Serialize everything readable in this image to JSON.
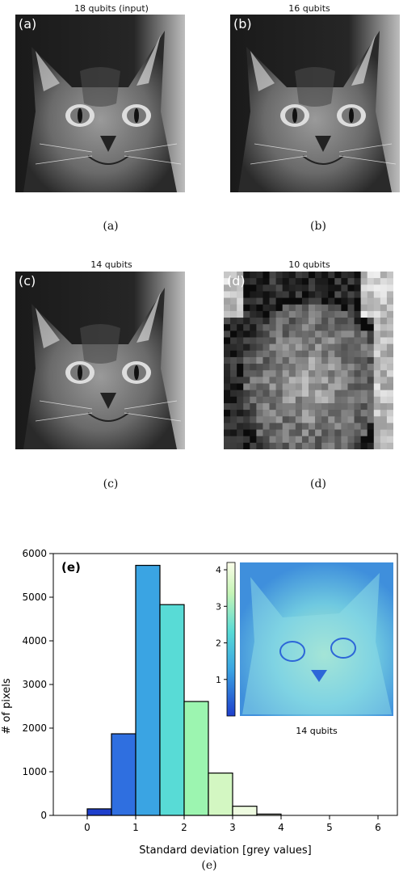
{
  "panels": [
    {
      "title": "18 qubits (input)",
      "tag": "(a)",
      "caption": "(a)",
      "pixelated": false
    },
    {
      "title": "16 qubits",
      "tag": "(b)",
      "caption": "(b)",
      "pixelated": false
    },
    {
      "title": "14 qubits",
      "tag": "(c)",
      "caption": "(c)",
      "pixelated": false
    },
    {
      "title": "10 qubits",
      "tag": "(d)",
      "caption": "(d)",
      "pixelated": true
    }
  ],
  "chart_data": {
    "type": "bar",
    "panel_tag": "(e)",
    "xlabel": "Standard deviation [grey values]",
    "ylabel": "# of pixels",
    "xlim": [
      -0.7,
      6.4
    ],
    "ylim": [
      0,
      6000
    ],
    "xticks": [
      0,
      1,
      2,
      3,
      4,
      5,
      6
    ],
    "yticks": [
      0,
      1000,
      2000,
      3000,
      4000,
      5000,
      6000
    ],
    "bins": [
      {
        "x0": 0.0,
        "x1": 0.5,
        "value": 150,
        "color": "#1e3fcc"
      },
      {
        "x0": 0.5,
        "x1": 1.0,
        "value": 1870,
        "color": "#2f6fe0"
      },
      {
        "x0": 1.0,
        "x1": 1.5,
        "value": 5730,
        "color": "#3aa4e3"
      },
      {
        "x0": 1.5,
        "x1": 2.0,
        "value": 4830,
        "color": "#58dbd6"
      },
      {
        "x0": 2.0,
        "x1": 2.5,
        "value": 2610,
        "color": "#9cf5b0"
      },
      {
        "x0": 2.5,
        "x1": 3.0,
        "value": 970,
        "color": "#d3f7c2"
      },
      {
        "x0": 3.0,
        "x1": 3.5,
        "value": 210,
        "color": "#eefbe0"
      },
      {
        "x0": 3.5,
        "x1": 4.0,
        "value": 30,
        "color": "#f8fde9"
      }
    ],
    "inset": {
      "title": "14 qubits",
      "colorbar_ticks": [
        1,
        2,
        3,
        4
      ],
      "colorbar_range": [
        0,
        4.2
      ]
    },
    "caption": "(e)"
  }
}
